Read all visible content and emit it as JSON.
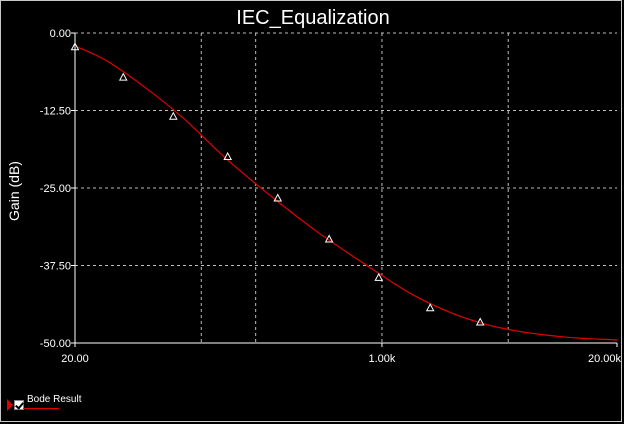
{
  "chart_data": {
    "type": "line",
    "title": "IEC_Equalization",
    "xlabel": "",
    "ylabel": "Gain (dB)",
    "x_scale": "log",
    "xlim": [
      20,
      20000
    ],
    "ylim": [
      -50,
      0
    ],
    "x_ticks": [
      20,
      1000,
      20000
    ],
    "x_tick_labels": [
      "20.00",
      "1.00k",
      "20.00k"
    ],
    "y_ticks": [
      0,
      -12.5,
      -25,
      -37.5,
      -50
    ],
    "y_tick_labels": [
      "0.00",
      "-12.50",
      "-25.00",
      "-37.50",
      "-50.00"
    ],
    "grid": true,
    "legend_position": "bottom-left",
    "series": [
      {
        "name": "Bode Result",
        "color": "#e00000",
        "marker": "triangle",
        "x": [
          20,
          30,
          50,
          80,
          140,
          250,
          450,
          1000,
          1500,
          2500,
          4000,
          6300,
          10000,
          14000,
          20000,
          25000
        ],
        "y": [
          -2.1,
          -4.5,
          -9.0,
          -13.8,
          -20.5,
          -26.6,
          -32.3,
          -39.1,
          -42.3,
          -45.3,
          -47.2,
          -48.3,
          -49.0,
          -49.3,
          -49.5,
          -49.6
        ]
      }
    ],
    "marker_points": {
      "x": [
        20,
        37,
        70,
        140,
        265,
        510,
        960,
        1850,
        3500
      ],
      "y": [
        -2.3,
        -7.2,
        -13.5,
        -20.0,
        -26.7,
        -33.3,
        -39.5,
        -44.4,
        -46.7
      ]
    }
  }
}
